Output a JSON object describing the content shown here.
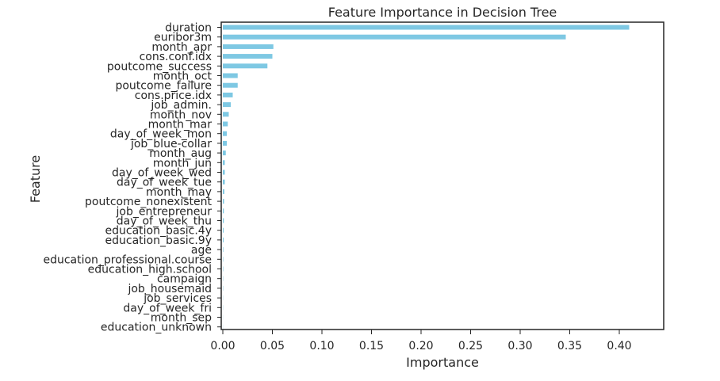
{
  "chart_data": {
    "type": "bar",
    "orientation": "horizontal",
    "title": "Feature Importance in Decision Tree",
    "xlabel": "Importance",
    "ylabel": "Feature",
    "xlim": [
      0,
      0.43
    ],
    "xticks": [
      "0.00",
      "0.05",
      "0.10",
      "0.15",
      "0.20",
      "0.25",
      "0.30",
      "0.35",
      "0.40"
    ],
    "grid": false,
    "bar_color": "#7ec8e3",
    "categories": [
      "duration",
      "euribor3m",
      "month_apr",
      "cons.conf.idx",
      "poutcome_success",
      "month_oct",
      "poutcome_failure",
      "cons.price.idx",
      "job_admin.",
      "month_nov",
      "month_mar",
      "day_of_week_mon",
      "job_blue-collar",
      "month_aug",
      "month_jun",
      "day_of_week_wed",
      "day_of_week_tue",
      "month_may",
      "poutcome_nonexistent",
      "job_entrepreneur",
      "day_of_week_thu",
      "education_basic.4y",
      "education_basic.9y",
      "age",
      "education_professional.course",
      "education_high.school",
      "campaign",
      "job_housemaid",
      "job_services",
      "day_of_week_fri",
      "month_sep",
      "education_unknown"
    ],
    "values": [
      0.41,
      0.346,
      0.051,
      0.05,
      0.045,
      0.015,
      0.015,
      0.01,
      0.008,
      0.006,
      0.005,
      0.004,
      0.004,
      0.003,
      0.002,
      0.002,
      0.002,
      0.0015,
      0.0012,
      0.001,
      0.001,
      0.0008,
      0.0008,
      0.0005,
      0.0004,
      0.0004,
      0.0003,
      0.0003,
      0.0002,
      0.0002,
      0.0001,
      0.0001
    ]
  }
}
